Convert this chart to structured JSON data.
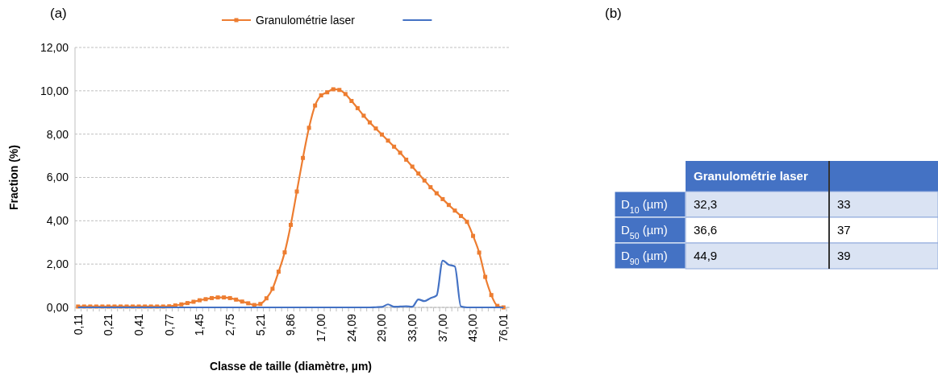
{
  "chart_data": [
    {
      "type": "line",
      "title": "(a)",
      "xlabel": "Classe de taille (diamètre, µm)",
      "ylabel": "Fraction (%)",
      "categories": [
        "0,11",
        null,
        null,
        null,
        null,
        "0,21",
        null,
        null,
        null,
        null,
        "0,41",
        null,
        null,
        null,
        null,
        "0,77",
        null,
        null,
        null,
        null,
        "1,45",
        null,
        null,
        null,
        null,
        "2,75",
        null,
        null,
        null,
        null,
        "5,21",
        null,
        null,
        null,
        null,
        "9,86",
        null,
        null,
        null,
        null,
        "17,00",
        null,
        null,
        null,
        null,
        "24,09",
        null,
        null,
        null,
        null,
        "29,00",
        null,
        null,
        null,
        null,
        "33,00",
        null,
        null,
        null,
        null,
        "37,00",
        null,
        null,
        null,
        null,
        "43,00",
        null,
        null,
        null,
        null,
        "76,01"
      ],
      "series": [
        {
          "name": "Granulométrie laser",
          "color": "#ed7d31",
          "marker": "square",
          "values": [
            0.04,
            0.04,
            0.04,
            0.04,
            0.04,
            0.04,
            0.04,
            0.04,
            0.04,
            0.04,
            0.04,
            0.04,
            0.04,
            0.04,
            0.04,
            0.05,
            0.09,
            0.14,
            0.2,
            0.26,
            0.33,
            0.38,
            0.43,
            0.46,
            0.46,
            0.43,
            0.36,
            0.27,
            0.19,
            0.11,
            0.16,
            0.42,
            0.86,
            1.65,
            2.54,
            3.81,
            5.35,
            6.9,
            8.29,
            9.32,
            9.79,
            9.93,
            10.07,
            10.04,
            9.85,
            9.53,
            9.2,
            8.85,
            8.54,
            8.26,
            7.98,
            7.7,
            7.42,
            7.14,
            6.82,
            6.5,
            6.18,
            5.86,
            5.55,
            5.27,
            5.0,
            4.73,
            4.47,
            4.22,
            3.95,
            3.3,
            2.53,
            1.41,
            0.57,
            0.07,
            0
          ]
        },
        {
          "color": "#4472c4",
          "marker": "none",
          "values": [
            0,
            0,
            0,
            0,
            0,
            0,
            0,
            0,
            0,
            0,
            0,
            0,
            0,
            0,
            0,
            0,
            0,
            0,
            0,
            0,
            0,
            0,
            0,
            0,
            0,
            0,
            0,
            0,
            0,
            0,
            0,
            0,
            0,
            0,
            0,
            0,
            0,
            0,
            0,
            0,
            0,
            0,
            0,
            0,
            0,
            0,
            0,
            0,
            0,
            0.01,
            0.02,
            0.14,
            0.03,
            0.04,
            0.05,
            0.03,
            0.37,
            0.29,
            0.43,
            0.55,
            2.16,
            1.97,
            1.89,
            0.04,
            0,
            0,
            0,
            0,
            0,
            0,
            0
          ]
        }
      ],
      "ylim": [
        0,
        12
      ],
      "yticks": [
        {
          "value": 0,
          "label": "0,00"
        },
        {
          "value": 2,
          "label": "2,00"
        },
        {
          "value": 4,
          "label": "4,00"
        },
        {
          "value": 6,
          "label": "6,00"
        },
        {
          "value": 8,
          "label": "8,00"
        },
        {
          "value": 10,
          "label": "10,00"
        },
        {
          "value": 12,
          "label": "12,00"
        }
      ],
      "grid": "y",
      "legend": "top"
    },
    {
      "type": "other",
      "title": "(b)",
      "categories": [
        "Granulométrie laser",
        null
      ],
      "y_categories": [
        "D$_{10}$ (µm)",
        "D$_{50}$ (µm)",
        "D$_{90}$ (µm)"
      ],
      "cell_labels": [
        [
          "32,3",
          "33"
        ],
        [
          "36,6",
          "37"
        ],
        [
          "44,9",
          "39"
        ]
      ]
    }
  ]
}
